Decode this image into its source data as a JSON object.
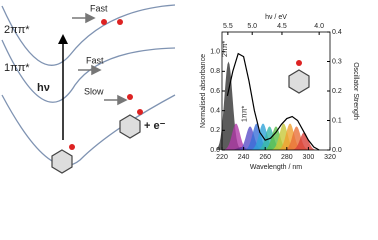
{
  "diagram": {
    "states": [
      "2ππ*",
      "1ππ*"
    ],
    "excitation": "hν",
    "arrows": [
      "Fast",
      "Fast",
      "Slow"
    ],
    "electron": "+ e⁻"
  },
  "chart_data": {
    "type": "line",
    "xlabel": "Wavelength / nm",
    "ylabel": "Normalised absorbance",
    "y2label": "Oscillator Strength",
    "x2label": "hν / eV",
    "annotations": [
      "2ππ*",
      "1ππ*"
    ],
    "xlim": [
      220,
      320
    ],
    "xticks": [
      220,
      240,
      260,
      280,
      300,
      320
    ],
    "ylim": [
      0,
      1.2
    ],
    "yticks": [
      {
        "value": 0,
        "label": "0.0"
      },
      0.2,
      0.4,
      0.6,
      0.8,
      {
        "value": 1,
        "label": "1.0"
      }
    ],
    "y2lim": [
      0,
      0.4
    ],
    "y2ticks": [
      {
        "value": 0,
        "label": "0.0"
      },
      0.1,
      0.2,
      0.3,
      0.4
    ],
    "x2ticks": [
      5.5,
      {
        "value": 5,
        "label": "5.0"
      },
      4.5,
      {
        "value": 4,
        "label": "4.0"
      }
    ],
    "x": [
      225,
      230,
      235,
      240,
      245,
      250,
      255,
      260,
      265,
      270,
      275,
      280,
      285,
      290,
      295,
      300,
      305,
      310
    ],
    "series": [
      {
        "color": "#000000",
        "values": [
          0.55,
          0.8,
          0.98,
          0.95,
          0.7,
          0.4,
          0.18,
          0.1,
          0.12,
          0.18,
          0.26,
          0.32,
          0.34,
          0.3,
          0.2,
          0.1,
          0.03,
          0.0
        ]
      },
      {
        "axis": "y2",
        "x": [
          226,
          233,
          238,
          246,
          252,
          258,
          264,
          270,
          277,
          283,
          289,
          296
        ],
        "values": [
          0.3,
          0.09,
          0.01,
          0.08,
          0.09,
          0.09,
          0.08,
          0.08,
          0.09,
          0.09,
          0.08,
          0.06
        ],
        "colors": [
          "#333333",
          "#b03aa8",
          "#6a2a8a",
          "#5a4ec8",
          "#3a6fd8",
          "#2fa3d8",
          "#36b8a8",
          "#5cbf4a",
          "#c8c83a",
          "#f0a030",
          "#e8703a",
          "#d8403a"
        ]
      }
    ]
  }
}
